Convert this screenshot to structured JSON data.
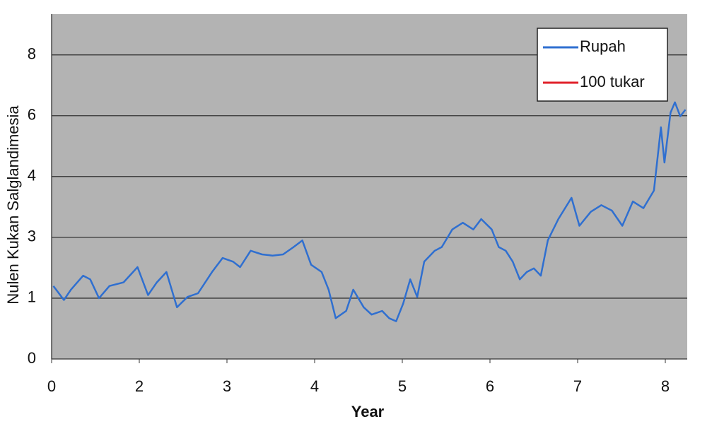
{
  "chart_data": {
    "type": "line",
    "ylabel": "Nulen Kukan Salglandimesia",
    "xlabel": "Year",
    "xlim": [
      0,
      7.25
    ],
    "ylim": [
      0,
      5.67
    ],
    "xticks": [
      {
        "value": 0,
        "label": "0"
      },
      {
        "value": 1,
        "label": "2"
      },
      {
        "value": 2,
        "label": "3"
      },
      {
        "value": 3,
        "label": "4"
      },
      {
        "value": 4,
        "label": "5"
      },
      {
        "value": 5,
        "label": "6"
      },
      {
        "value": 6,
        "label": "7"
      },
      {
        "value": 7,
        "label": "8"
      }
    ],
    "yticks": [
      {
        "value": 0,
        "label": "0"
      },
      {
        "value": 1,
        "label": "1"
      },
      {
        "value": 2,
        "label": "3"
      },
      {
        "value": 3,
        "label": "4"
      },
      {
        "value": 4,
        "label": "6"
      },
      {
        "value": 5,
        "label": "8"
      }
    ],
    "grid": true,
    "legend": "upper right",
    "x": [
      0.02,
      0.14,
      0.22,
      0.36,
      0.44,
      0.54,
      0.66,
      0.82,
      0.98,
      1.1,
      1.2,
      1.31,
      1.43,
      1.55,
      1.67,
      1.83,
      1.95,
      2.07,
      2.15,
      2.27,
      2.4,
      2.52,
      2.64,
      2.76,
      2.86,
      2.96,
      3.08,
      3.16,
      3.24,
      3.36,
      3.44,
      3.56,
      3.65,
      3.77,
      3.85,
      3.93,
      4.01,
      4.09,
      4.17,
      4.25,
      4.37,
      4.45,
      4.57,
      4.69,
      4.81,
      4.9,
      5.02,
      5.1,
      5.18,
      5.26,
      5.34,
      5.42,
      5.5,
      5.58,
      5.66,
      5.78,
      5.93,
      6.02,
      6.15,
      6.27,
      6.39,
      6.51,
      6.63,
      6.75,
      6.87,
      6.95,
      6.99,
      7.06,
      7.11,
      7.17,
      7.23
    ],
    "series": [
      {
        "name": "Rupah",
        "color": "#2f6fd0",
        "values": [
          1.2,
          0.97,
          1.14,
          1.37,
          1.31,
          1.0,
          1.2,
          1.26,
          1.51,
          1.05,
          1.26,
          1.43,
          0.85,
          1.02,
          1.08,
          1.43,
          1.66,
          1.6,
          1.51,
          1.78,
          1.72,
          1.7,
          1.72,
          1.84,
          1.95,
          1.55,
          1.43,
          1.14,
          0.67,
          0.79,
          1.14,
          0.85,
          0.73,
          0.79,
          0.67,
          0.62,
          0.91,
          1.31,
          1.02,
          1.6,
          1.78,
          1.84,
          2.13,
          2.24,
          2.13,
          2.3,
          2.13,
          1.84,
          1.78,
          1.6,
          1.31,
          1.43,
          1.49,
          1.37,
          1.95,
          2.3,
          2.65,
          2.19,
          2.42,
          2.53,
          2.44,
          2.19,
          2.59,
          2.48,
          2.77,
          3.81,
          3.23,
          4.05,
          4.22,
          3.99,
          4.1
        ]
      },
      {
        "name": "100 tukar",
        "color": "#e0202a",
        "values": [
          null,
          null,
          null,
          null,
          null,
          null,
          null,
          null,
          null,
          null,
          null,
          null,
          null,
          null,
          null,
          null,
          null,
          null,
          null,
          null,
          null,
          null,
          null,
          null,
          null,
          null,
          null,
          null,
          null,
          null,
          null,
          null,
          null,
          null,
          null,
          null,
          null,
          null,
          null,
          null,
          null,
          null,
          null,
          null,
          null,
          null,
          null,
          null,
          null,
          null,
          null,
          null,
          null,
          null,
          null,
          null,
          null,
          null,
          null,
          null,
          null,
          null,
          null,
          null,
          null,
          null,
          null,
          null,
          null,
          null,
          null
        ]
      }
    ]
  }
}
